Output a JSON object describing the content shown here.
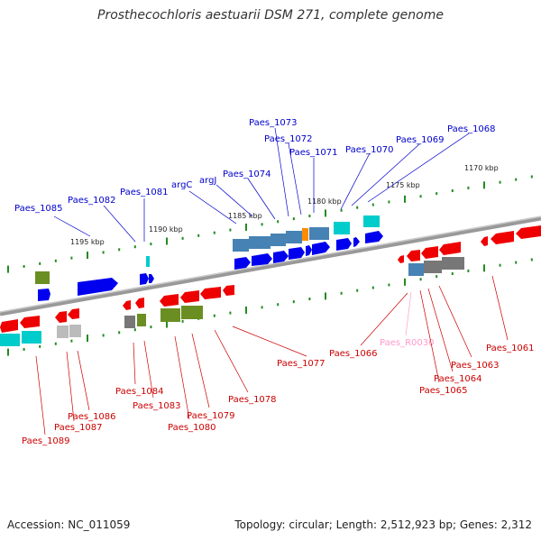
{
  "title": "Prosthecochloris aestuarii DSM 271, complete genome",
  "footer": {
    "accession": "Accession: NC_011059",
    "topology": "Topology: circular; Length: 2,512,923 bp; Genes: 2,312"
  },
  "colors": {
    "forward_protein": "#0000ee",
    "reverse_protein": "#ee0000",
    "cog_blue": "#4682b4",
    "cog_green": "#6b8e23",
    "cog_cyan": "#00cccc",
    "cog_gray": "#777777",
    "cog_orange": "#ff8c00",
    "rna": "#ff99cc",
    "backbone": "#888888",
    "scale_dots": "#228b22"
  },
  "scale_labels": [
    "1170 kbp",
    "1175 kbp",
    "1180 kbp",
    "1185 kbp",
    "1190 kbp",
    "1195 kbp"
  ],
  "forward_genes": [
    "Paes_1085",
    "Paes_1082",
    "Paes_1081",
    "argC",
    "argJ",
    "Paes_1074",
    "Paes_1073",
    "Paes_1072",
    "Paes_1071",
    "Paes_1070",
    "Paes_1069",
    "Paes_1068"
  ],
  "reverse_genes": [
    "Paes_1089",
    "Paes_1087",
    "Paes_1086",
    "Paes_1084",
    "Paes_1083",
    "Paes_1080",
    "Paes_1079",
    "Paes_1078",
    "Paes_1077",
    "Paes_1066",
    "Paes_R0030",
    "Paes_1065",
    "Paes_1064",
    "Paes_1063",
    "Paes_1061"
  ]
}
